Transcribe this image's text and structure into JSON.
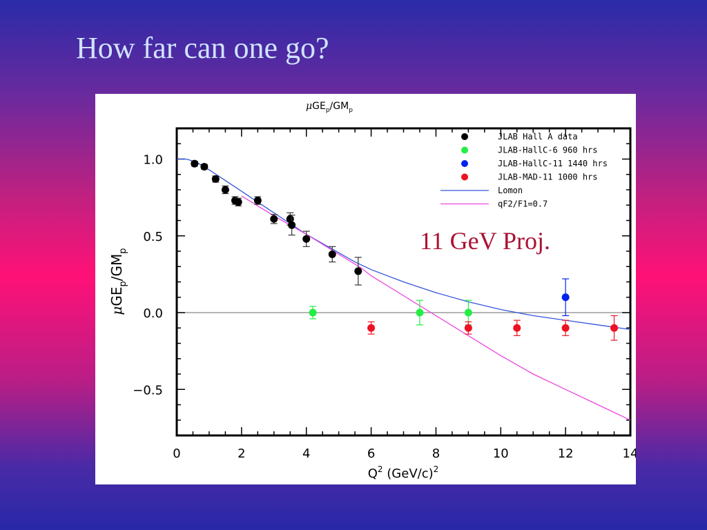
{
  "slide": {
    "title": "How far can one go?",
    "annotation": "11 GeV Proj."
  },
  "chart_data": {
    "type": "scatter",
    "title": "μGE_p/GM_p",
    "xlabel": "Q² (GeV/c)²",
    "ylabel": "μGE_p/GM_p",
    "xlim": [
      0,
      14
    ],
    "ylim": [
      -0.8,
      1.2
    ],
    "x_ticks": [
      0,
      2,
      4,
      6,
      8,
      10,
      12,
      14
    ],
    "y_ticks": [
      -0.5,
      0.0,
      0.5,
      1.0
    ],
    "x_tick_labels": [
      "0",
      "2",
      "4",
      "6",
      "8",
      "10",
      "12",
      "14"
    ],
    "y_tick_labels": [
      "−0.5",
      "0.0",
      "0.5",
      "1.0"
    ],
    "zero_line": true,
    "legend_position": "top-right",
    "series": [
      {
        "name": "JLAB Hall A data",
        "color": "#000000",
        "points": [
          {
            "x": 0.55,
            "y": 0.97,
            "err": 0.015
          },
          {
            "x": 0.85,
            "y": 0.95,
            "err": 0.015
          },
          {
            "x": 1.2,
            "y": 0.87,
            "err": 0.02
          },
          {
            "x": 1.5,
            "y": 0.8,
            "err": 0.025
          },
          {
            "x": 1.8,
            "y": 0.73,
            "err": 0.025
          },
          {
            "x": 1.9,
            "y": 0.72,
            "err": 0.025
          },
          {
            "x": 2.5,
            "y": 0.73,
            "err": 0.025
          },
          {
            "x": 3.0,
            "y": 0.61,
            "err": 0.03
          },
          {
            "x": 3.5,
            "y": 0.61,
            "err": 0.04
          },
          {
            "x": 3.55,
            "y": 0.57,
            "err": 0.065
          },
          {
            "x": 4.0,
            "y": 0.48,
            "err": 0.05
          },
          {
            "x": 4.8,
            "y": 0.38,
            "err": 0.05
          },
          {
            "x": 5.6,
            "y": 0.27,
            "err": 0.09
          }
        ]
      },
      {
        "name": "JLAB-HallC-6  960 hrs",
        "color": "#22ee44",
        "points": [
          {
            "x": 4.2,
            "y": 0.0,
            "err": 0.04
          },
          {
            "x": 7.5,
            "y": 0.0,
            "err": 0.08
          },
          {
            "x": 9.0,
            "y": 0.0,
            "err": 0.08
          }
        ]
      },
      {
        "name": "JLAB-HallC-11  1440 hrs",
        "color": "#0022ee",
        "points": [
          {
            "x": 12.0,
            "y": 0.1,
            "err": 0.12
          }
        ]
      },
      {
        "name": "JLAB-MAD-11  1000 hrs",
        "color": "#ee1122",
        "points": [
          {
            "x": 6.0,
            "y": -0.1,
            "err": 0.04
          },
          {
            "x": 9.0,
            "y": -0.1,
            "err": 0.04
          },
          {
            "x": 10.5,
            "y": -0.1,
            "err": 0.05
          },
          {
            "x": 12.0,
            "y": -0.1,
            "err": 0.05
          },
          {
            "x": 13.5,
            "y": -0.1,
            "err": 0.08
          }
        ]
      }
    ],
    "curves": [
      {
        "name": "Lomon",
        "color": "#3355dd",
        "points": [
          [
            0,
            1.0
          ],
          [
            0.3,
            1.0
          ],
          [
            0.6,
            0.98
          ],
          [
            1,
            0.93
          ],
          [
            1.5,
            0.86
          ],
          [
            2,
            0.79
          ],
          [
            2.5,
            0.72
          ],
          [
            3,
            0.65
          ],
          [
            3.5,
            0.58
          ],
          [
            4,
            0.51
          ],
          [
            4.5,
            0.45
          ],
          [
            5,
            0.39
          ],
          [
            5.5,
            0.33
          ],
          [
            6,
            0.28
          ],
          [
            7,
            0.2
          ],
          [
            8,
            0.13
          ],
          [
            9,
            0.07
          ],
          [
            10,
            0.02
          ],
          [
            11,
            -0.02
          ],
          [
            12,
            -0.05
          ],
          [
            13,
            -0.08
          ],
          [
            14,
            -0.11
          ]
        ]
      },
      {
        "name": "qF2/F1=0.7",
        "color": "#ee44dd",
        "points": [
          [
            2,
            0.76
          ],
          [
            3,
            0.63
          ],
          [
            4,
            0.51
          ],
          [
            5,
            0.38
          ],
          [
            5.7,
            0.29
          ],
          [
            6,
            0.24
          ],
          [
            7,
            0.11
          ],
          [
            8,
            -0.02
          ],
          [
            9,
            -0.15
          ],
          [
            10,
            -0.28
          ],
          [
            11,
            -0.4
          ],
          [
            12,
            -0.5
          ],
          [
            13,
            -0.6
          ],
          [
            14,
            -0.7
          ]
        ]
      }
    ]
  }
}
